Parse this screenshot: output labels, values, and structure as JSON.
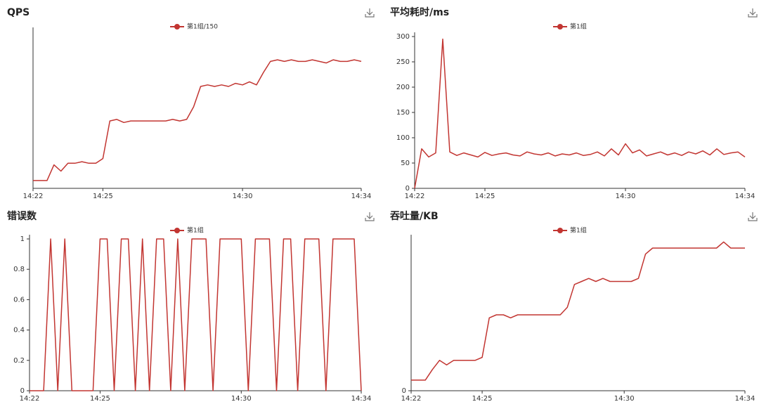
{
  "chart_data": [
    {
      "type": "line",
      "title": "QPS",
      "categories": [
        "14:22",
        null,
        null,
        null,
        null,
        null,
        null,
        null,
        null,
        null,
        "14:25",
        null,
        null,
        null,
        null,
        null,
        null,
        null,
        null,
        null,
        null,
        null,
        null,
        null,
        null,
        null,
        null,
        null,
        null,
        null,
        "14:30",
        null,
        null,
        null,
        null,
        null,
        null,
        null,
        null,
        null,
        null,
        null,
        null,
        null,
        null,
        null,
        null,
        "14:34"
      ],
      "series": [
        {
          "name": "第1组/150",
          "color": "#c23531",
          "values": [
            5,
            5,
            5,
            15,
            11,
            16,
            16,
            17,
            16,
            16,
            19,
            43,
            44,
            42,
            43,
            43,
            43,
            43,
            43,
            43,
            44,
            43,
            44,
            52,
            65,
            66,
            65,
            66,
            65,
            67,
            66,
            68,
            66,
            74,
            81,
            82,
            81,
            82,
            81,
            81,
            82,
            81,
            80,
            82,
            81,
            81,
            82,
            81
          ]
        }
      ],
      "ylim": [
        0,
        100
      ]
    },
    {
      "type": "line",
      "title": "平均耗时/ms",
      "categories": [
        "14:22",
        null,
        null,
        null,
        null,
        null,
        null,
        null,
        null,
        null,
        "14:25",
        null,
        null,
        null,
        null,
        null,
        null,
        null,
        null,
        null,
        null,
        null,
        null,
        null,
        null,
        null,
        null,
        null,
        null,
        null,
        "14:30",
        null,
        null,
        null,
        null,
        null,
        null,
        null,
        null,
        null,
        null,
        null,
        null,
        null,
        null,
        null,
        null,
        "14:34"
      ],
      "series": [
        {
          "name": "第1组",
          "color": "#c23531",
          "values": [
            0,
            78,
            62,
            70,
            295,
            72,
            65,
            70,
            66,
            62,
            71,
            65,
            68,
            70,
            66,
            64,
            72,
            68,
            66,
            70,
            64,
            68,
            66,
            70,
            65,
            67,
            72,
            64,
            78,
            66,
            88,
            70,
            76,
            64,
            68,
            72,
            66,
            70,
            65,
            72,
            68,
            74,
            66,
            78,
            67,
            70,
            72,
            62
          ]
        }
      ],
      "ylim": [
        0,
        300
      ],
      "yticks": [
        0,
        50,
        100,
        150,
        200,
        250,
        300
      ]
    },
    {
      "type": "line",
      "title": "错误数",
      "categories": [
        "14:22",
        null,
        null,
        null,
        null,
        null,
        null,
        null,
        null,
        null,
        "14:25",
        null,
        null,
        null,
        null,
        null,
        null,
        null,
        null,
        null,
        null,
        null,
        null,
        null,
        null,
        null,
        null,
        null,
        null,
        null,
        "14:30",
        null,
        null,
        null,
        null,
        null,
        null,
        null,
        null,
        null,
        null,
        null,
        null,
        null,
        null,
        null,
        null,
        "14:34"
      ],
      "series": [
        {
          "name": "第1组",
          "color": "#c23531",
          "values": [
            0,
            0,
            0,
            1,
            0,
            1,
            0,
            0,
            0,
            0,
            1,
            1,
            0,
            1,
            1,
            0,
            1,
            0,
            1,
            1,
            0,
            1,
            0,
            1,
            1,
            1,
            0,
            1,
            1,
            1,
            1,
            0,
            1,
            1,
            1,
            0,
            1,
            1,
            0,
            1,
            1,
            1,
            0,
            1,
            1,
            1,
            1,
            0
          ]
        }
      ],
      "ylim": [
        0,
        1
      ],
      "yticks": [
        0,
        0.2,
        0.4,
        0.6,
        0.8,
        1
      ]
    },
    {
      "type": "line",
      "title": "吞吐量/KB",
      "categories": [
        "14:22",
        null,
        null,
        null,
        null,
        null,
        null,
        null,
        null,
        null,
        "14:25",
        null,
        null,
        null,
        null,
        null,
        null,
        null,
        null,
        null,
        null,
        null,
        null,
        null,
        null,
        null,
        null,
        null,
        null,
        null,
        "14:30",
        null,
        null,
        null,
        null,
        null,
        null,
        null,
        null,
        null,
        null,
        null,
        null,
        null,
        null,
        null,
        null,
        "14:34"
      ],
      "series": [
        {
          "name": "第1组",
          "color": "#c23531",
          "values": [
            7,
            7,
            7,
            14,
            20,
            17,
            20,
            20,
            20,
            20,
            22,
            48,
            50,
            50,
            48,
            50,
            50,
            50,
            50,
            50,
            50,
            50,
            55,
            70,
            72,
            74,
            72,
            74,
            72,
            72,
            72,
            72,
            74,
            90,
            94,
            94,
            94,
            94,
            94,
            94,
            94,
            94,
            94,
            94,
            98,
            94,
            94,
            94
          ]
        }
      ],
      "ylim": [
        0,
        100
      ],
      "yticks": [
        0
      ]
    }
  ]
}
